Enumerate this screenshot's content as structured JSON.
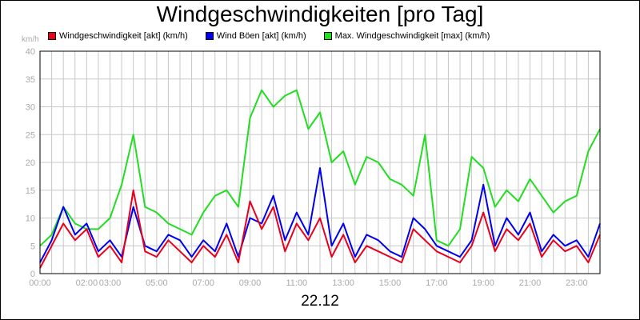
{
  "chart_data": {
    "type": "line",
    "title": "Windgeschwindigkeiten [pro Tag]",
    "xlabel": "22.12",
    "ylabel_unit": "km/h",
    "ylim": [
      0,
      40
    ],
    "xlim": [
      0,
      24
    ],
    "y_ticks": [
      0,
      5,
      10,
      15,
      20,
      25,
      30,
      35,
      40
    ],
    "x_ticks": [
      {
        "label": "00:00",
        "hour": 0
      },
      {
        "label": "02:00",
        "hour": 2
      },
      {
        "label": "03:00",
        "hour": 3
      },
      {
        "label": "05:00",
        "hour": 5
      },
      {
        "label": "07:00",
        "hour": 7
      },
      {
        "label": "09:00",
        "hour": 9
      },
      {
        "label": "11:00",
        "hour": 11
      },
      {
        "label": "13:00",
        "hour": 13
      },
      {
        "label": "15:00",
        "hour": 15
      },
      {
        "label": "17:00",
        "hour": 17
      },
      {
        "label": "19:00",
        "hour": 19
      },
      {
        "label": "21:00",
        "hour": 21
      },
      {
        "label": "23:00",
        "hour": 23
      }
    ],
    "grid": true,
    "legend_position": "top-left",
    "x": [
      0,
      0.5,
      1,
      1.5,
      2,
      2.5,
      3,
      3.5,
      4,
      4.5,
      5,
      5.5,
      6,
      6.5,
      7,
      7.5,
      8,
      8.5,
      9,
      9.5,
      10,
      10.5,
      11,
      11.5,
      12,
      12.5,
      13,
      13.5,
      14,
      14.5,
      15,
      15.5,
      16,
      16.5,
      17,
      17.5,
      18,
      18.5,
      19,
      19.5,
      20,
      20.5,
      21,
      21.5,
      22,
      22.5,
      23,
      23.5,
      24
    ],
    "series": [
      {
        "name": "Windgeschwindigkeit [akt] (km/h)",
        "color": "#e8001c",
        "values": [
          1,
          5,
          9,
          6,
          8,
          3,
          5,
          2,
          15,
          4,
          3,
          6,
          4,
          2,
          5,
          3,
          7,
          2,
          13,
          8,
          12,
          4,
          9,
          6,
          10,
          3,
          7,
          2,
          5,
          4,
          3,
          2,
          8,
          6,
          4,
          3,
          2,
          5,
          11,
          4,
          8,
          6,
          9,
          3,
          6,
          4,
          5,
          2,
          7
        ]
      },
      {
        "name": "Wind Böen [akt] (km/h)",
        "color": "#0000ee",
        "values": [
          2,
          6,
          12,
          7,
          9,
          4,
          6,
          3,
          12,
          5,
          4,
          7,
          6,
          3,
          6,
          4,
          9,
          3,
          10,
          9,
          14,
          6,
          11,
          7,
          19,
          5,
          9,
          3,
          7,
          6,
          4,
          3,
          10,
          8,
          5,
          4,
          3,
          6,
          16,
          5,
          10,
          7,
          11,
          4,
          7,
          5,
          6,
          3,
          9
        ]
      },
      {
        "name": "Max. Windgeschwindigkeit [max] (km/h)",
        "color": "#22dd22",
        "values": [
          5,
          7,
          12,
          9,
          8,
          8,
          10,
          16,
          25,
          12,
          11,
          9,
          8,
          7,
          11,
          14,
          15,
          12,
          28,
          33,
          30,
          32,
          33,
          26,
          29,
          20,
          22,
          16,
          21,
          20,
          17,
          16,
          14,
          25,
          6,
          5,
          8,
          21,
          19,
          12,
          15,
          13,
          17,
          14,
          11,
          13,
          14,
          22,
          26
        ]
      }
    ]
  }
}
